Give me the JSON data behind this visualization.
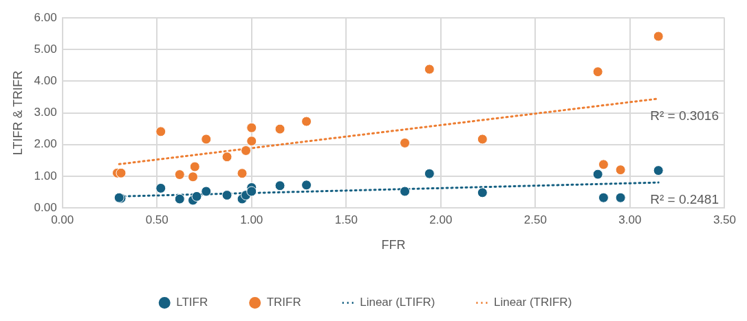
{
  "chart_data": {
    "type": "scatter",
    "xlabel": "FFR",
    "ylabel": "LTIFR & TRIFR",
    "xlim": [
      0,
      3.5
    ],
    "xticks": [
      {
        "value": 0,
        "label": "0.00"
      },
      {
        "value": 0.5,
        "label": "0.50"
      },
      {
        "value": 1,
        "label": "1.00"
      },
      {
        "value": 1.5,
        "label": "1.50"
      },
      {
        "value": 2,
        "label": "2.00"
      },
      {
        "value": 2.5,
        "label": "2.50"
      },
      {
        "value": 3,
        "label": "3.00"
      },
      {
        "value": 3.5,
        "label": "3.50"
      }
    ],
    "ylim": [
      0,
      6
    ],
    "yticks": [
      {
        "value": 0,
        "label": "0.00"
      },
      {
        "value": 1,
        "label": "1.00"
      },
      {
        "value": 2,
        "label": "2.00"
      },
      {
        "value": 3,
        "label": "3.00"
      },
      {
        "value": 4,
        "label": "4.00"
      },
      {
        "value": 5,
        "label": "5.00"
      },
      {
        "value": 6,
        "label": "6.00"
      }
    ],
    "grid": true,
    "legend": "bottom",
    "series": [
      {
        "name": "LTIFR",
        "type": "scatter",
        "marker": "circle",
        "color": "#156082",
        "x": [
          0.31,
          0.3,
          0.52,
          0.62,
          0.69,
          0.71,
          0.76,
          0.87,
          0.95,
          0.97,
          1.0,
          1.0,
          1.15,
          1.29,
          1.81,
          1.94,
          2.22,
          2.83,
          2.86,
          2.95,
          3.15
        ],
        "values": [
          0.3,
          0.32,
          0.62,
          0.28,
          0.24,
          0.36,
          0.52,
          0.4,
          0.28,
          0.4,
          0.64,
          0.52,
          0.7,
          0.72,
          0.52,
          1.08,
          0.48,
          1.06,
          0.32,
          0.32,
          1.18
        ]
      },
      {
        "name": "TRIFR",
        "type": "scatter",
        "marker": "circle",
        "color": "#ed7d31",
        "x": [
          0.29,
          0.31,
          0.52,
          0.62,
          0.69,
          0.7,
          0.76,
          0.87,
          0.95,
          0.97,
          1.0,
          1.0,
          1.15,
          1.29,
          1.81,
          1.94,
          2.22,
          2.83,
          2.86,
          2.95,
          3.15
        ],
        "values": [
          1.1,
          1.1,
          2.41,
          1.05,
          0.98,
          1.3,
          2.17,
          1.61,
          1.09,
          1.81,
          2.53,
          2.11,
          2.49,
          2.73,
          2.05,
          4.38,
          2.17,
          4.3,
          1.37,
          1.2,
          5.42
        ]
      },
      {
        "name": "Linear (LTIFR)",
        "type": "line",
        "marker": "none",
        "line_style": "dotted",
        "color": "#156082",
        "x": [
          0.3,
          3.15
        ],
        "values": [
          0.36,
          0.8
        ]
      },
      {
        "name": "Linear (TRIFR)",
        "type": "line",
        "marker": "none",
        "line_style": "dotted",
        "color": "#ed7d31",
        "x": [
          0.3,
          3.15
        ],
        "values": [
          1.38,
          3.45
        ]
      }
    ],
    "annotations": [
      "R² = 0.2481",
      "R² = 0.3016"
    ]
  }
}
